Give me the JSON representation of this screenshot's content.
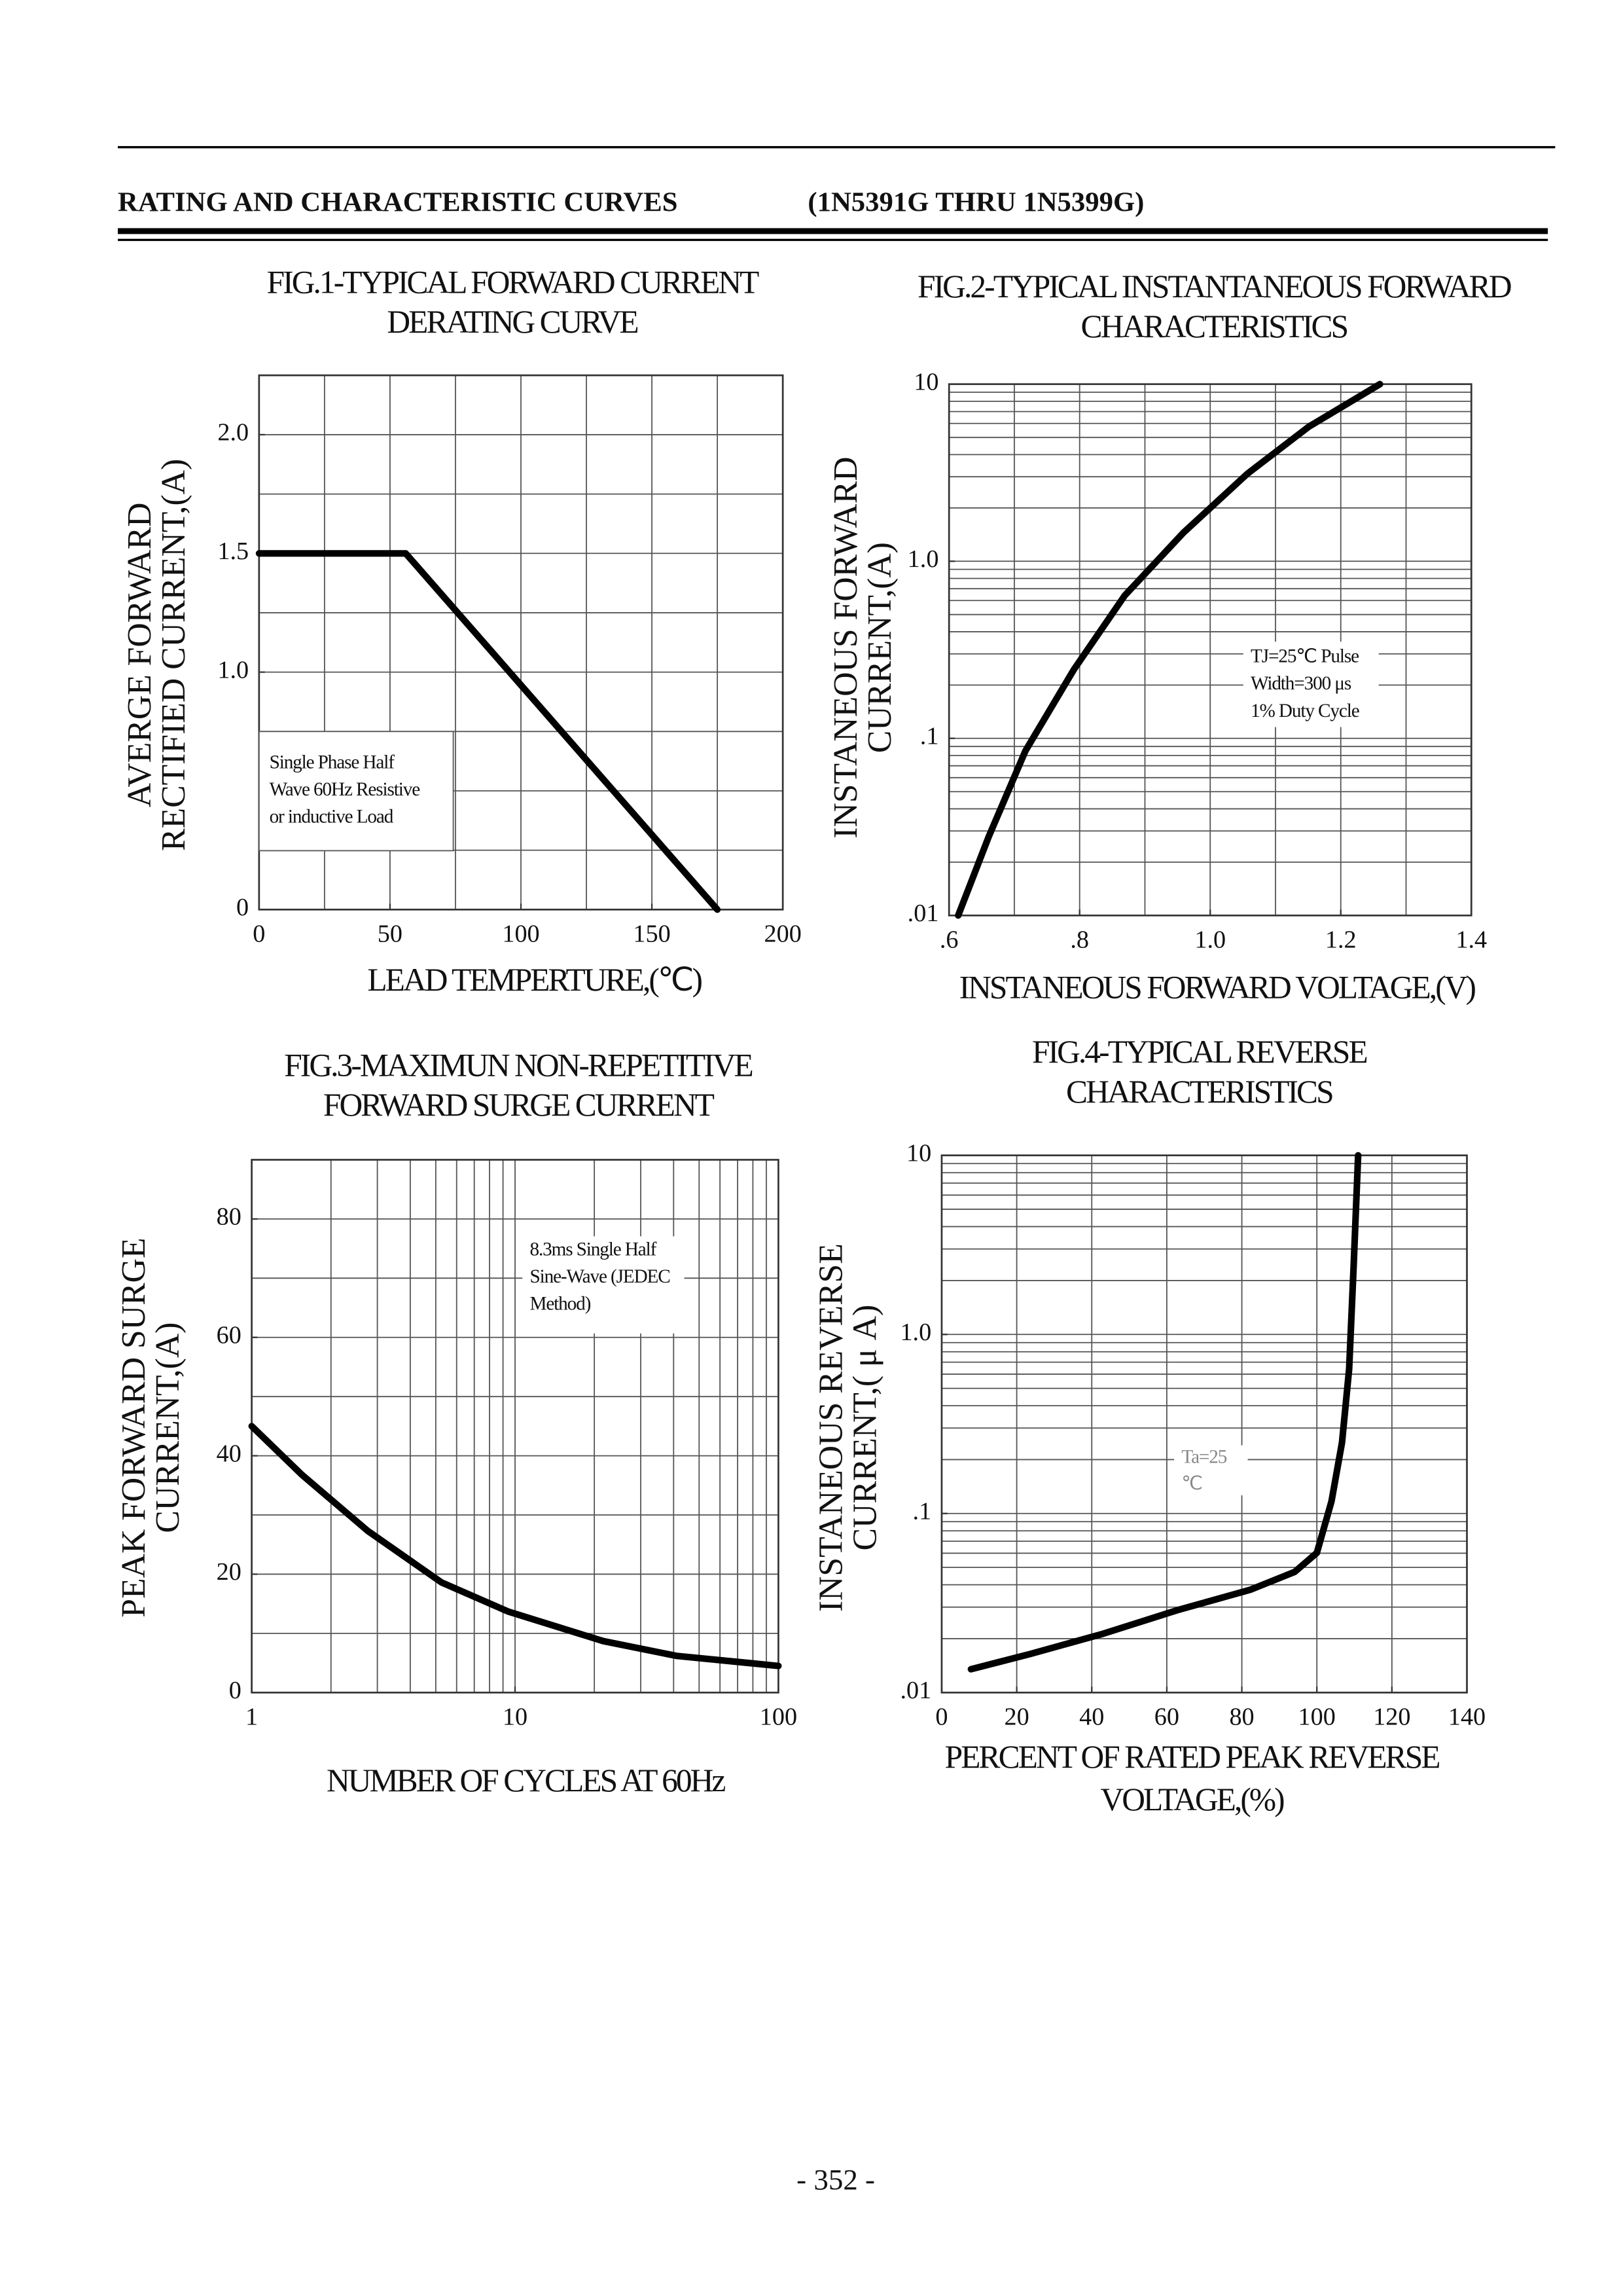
{
  "header": {
    "title": "RATING AND CHARACTERISTIC CURVES",
    "subtitle": "(1N5391G THRU 1N5399G)"
  },
  "page_number": "- 352 -",
  "chart_data": [
    {
      "type": "line",
      "title": [
        "FIG.1-TYPICAL FORWARD CURRENT",
        "DERATING CURVE"
      ],
      "xlabel": [
        "LEAD TEMPERTURE,(℃)"
      ],
      "ylabel": [
        "AVERGE FORWARD",
        "RECTIFIED CURRENT,(A)"
      ],
      "xlim": [
        0,
        200
      ],
      "ylim": [
        0,
        2.25
      ],
      "xticks": [
        0,
        50,
        100,
        150,
        200
      ],
      "yticks": [
        0,
        {
          "value": 1,
          "label": "1.0"
        },
        1.5,
        {
          "value": 2,
          "label": "2.0"
        }
      ],
      "xgrid": [
        25,
        50,
        75,
        100,
        125,
        150,
        175
      ],
      "ygrid": [
        0.25,
        0.5,
        0.75,
        1,
        1.25,
        1.5,
        1.75,
        2
      ],
      "annotation": [
        "Single Phase Half",
        "Wave 60Hz Resistive",
        "or inductive Load"
      ],
      "series": [
        {
          "color": "#000000",
          "x": [
            0,
            56,
            175
          ],
          "values": [
            1.5,
            1.5,
            0
          ]
        }
      ]
    },
    {
      "type": "line",
      "title": [
        "FIG.2-TYPICAL INSTANTANEOUS FORWARD",
        "CHARACTERISTICS"
      ],
      "xlabel": [
        "INSTANEOUS FORWARD VOLTAGE,(V)"
      ],
      "ylabel": [
        "INSTANEOUS FORWARD",
        "CURRENT,(A)"
      ],
      "xlim": [
        0.6,
        1.4
      ],
      "ylim": [
        0.01,
        10
      ],
      "yscale": "log",
      "xticks": [
        {
          "value": 0.6,
          "label": ".6"
        },
        {
          "value": 0.8,
          "label": ".8"
        },
        {
          "value": 1,
          "label": "1.0"
        },
        1.2,
        1.4
      ],
      "yticks": [
        {
          "value": 0.01,
          "label": ".01"
        },
        {
          "value": 0.1,
          "label": ".1"
        },
        {
          "value": 1,
          "label": "1.0"
        },
        10
      ],
      "xgrid": [
        0.7,
        0.8,
        0.9,
        1,
        1.1,
        1.2,
        1.3
      ],
      "ygrid": [
        0.02,
        0.03,
        0.04,
        0.05,
        0.06,
        0.07,
        0.08,
        0.09,
        0.1,
        0.2,
        0.3,
        0.4,
        0.5,
        0.6,
        0.7,
        0.8,
        0.9,
        1,
        2,
        3,
        4,
        5,
        6,
        7,
        8,
        9
      ],
      "annotation": [
        "TJ=25℃ Pulse",
        "Width=300 μs",
        "1% Duty Cycle"
      ],
      "series": [
        {
          "color": "#000000",
          "x": [
            0.614,
            0.661,
            0.717,
            0.791,
            0.869,
            0.959,
            1.057,
            1.151,
            1.26
          ],
          "values": [
            0.01,
            0.028,
            0.085,
            0.244,
            0.64,
            1.45,
            3.12,
            5.75,
            10
          ]
        }
      ]
    },
    {
      "type": "line",
      "title": [
        "FIG.3-MAXIMUN NON-REPETITIVE",
        "FORWARD SURGE CURRENT"
      ],
      "xlabel": [
        "NUMBER OF CYCLES AT 60Hz"
      ],
      "ylabel": [
        "PEAK FORWARD SURGE",
        "CURRENT,(A)"
      ],
      "xlim": [
        1,
        100
      ],
      "ylim": [
        0,
        90
      ],
      "xscale": "log",
      "xticks": [
        1,
        10,
        100
      ],
      "yticks": [
        0,
        20,
        40,
        60,
        80
      ],
      "xgrid": [
        2,
        3,
        4,
        5,
        6,
        7,
        8,
        9,
        10,
        20,
        30,
        40,
        50,
        60,
        70,
        80,
        90
      ],
      "ygrid": [
        10,
        20,
        30,
        40,
        50,
        60,
        70,
        80
      ],
      "annotation": [
        "8.3ms Single Half",
        "Sine-Wave (JEDEC",
        "Method)"
      ],
      "series": [
        {
          "color": "#000000",
          "x": [
            1,
            1.55,
            2.76,
            5.26,
            9.4,
            21.6,
            41,
            100
          ],
          "values": [
            45,
            36.8,
            27.3,
            18.6,
            13.7,
            8.7,
            6.2,
            4.5
          ]
        }
      ]
    },
    {
      "type": "line",
      "title": [
        "FIG.4-TYPICAL REVERSE",
        "CHARACTERISTICS"
      ],
      "xlabel": [
        "PERCENT OF RATED PEAK REVERSE",
        "VOLTAGE,(%)"
      ],
      "ylabel": [
        "INSTANEOUS REVERSE",
        "CURRENT,( μ A)"
      ],
      "xlim": [
        0,
        140
      ],
      "ylim": [
        0.01,
        10
      ],
      "yscale": "log",
      "xticks": [
        0,
        20,
        40,
        60,
        80,
        100,
        120,
        140
      ],
      "yticks": [
        {
          "value": 0.01,
          "label": ".01"
        },
        {
          "value": 0.1,
          "label": ".1"
        },
        {
          "value": 1,
          "label": "1.0"
        },
        10
      ],
      "xgrid": [
        20,
        40,
        60,
        80,
        100,
        120
      ],
      "ygrid": [
        0.02,
        0.03,
        0.04,
        0.05,
        0.06,
        0.07,
        0.08,
        0.09,
        0.1,
        0.2,
        0.3,
        0.4,
        0.5,
        0.6,
        0.7,
        0.8,
        0.9,
        1,
        2,
        3,
        4,
        5,
        6,
        7,
        8,
        9
      ],
      "annotation": [
        "Ta=25",
        "℃"
      ],
      "series": [
        {
          "color": "#000000",
          "x": [
            7.8,
            23.5,
            43,
            62.7,
            82.4,
            94.1,
            100,
            103.9,
            106.7,
            108.6,
            109.8,
            111
          ],
          "values": [
            0.0135,
            0.0164,
            0.0213,
            0.0288,
            0.0376,
            0.0472,
            0.0603,
            0.117,
            0.249,
            0.64,
            2.4,
            10
          ]
        }
      ]
    }
  ]
}
